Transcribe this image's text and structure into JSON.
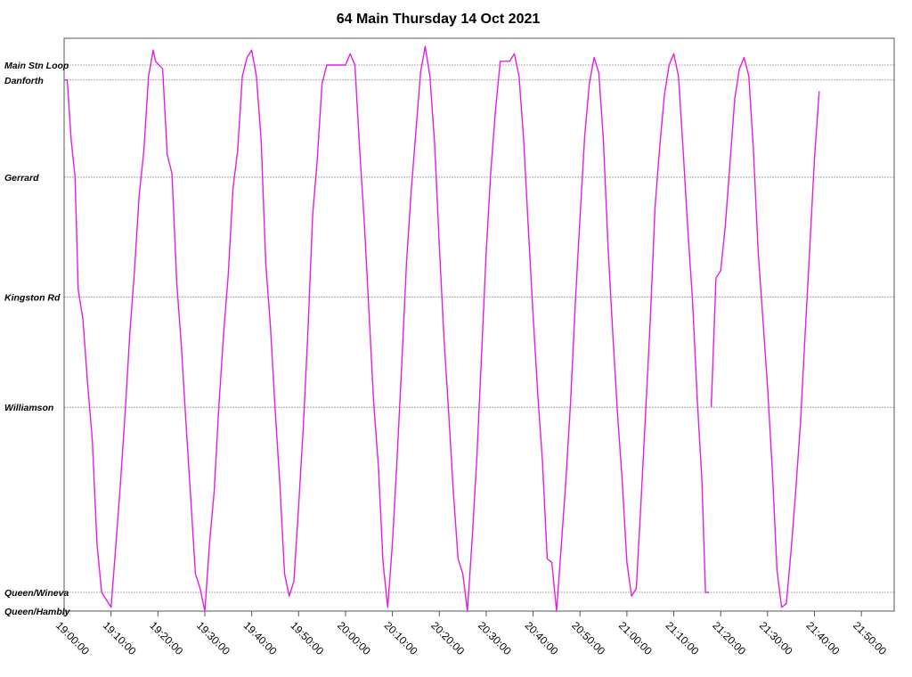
{
  "chart_data": {
    "type": "line",
    "title": "64 Main Thursday 14 Oct 2021",
    "xlabel": "",
    "ylabel": "",
    "x_axis": {
      "unit": "time",
      "min": "19:00:00",
      "max": "21:57:00",
      "ticks": [
        "19:00:00",
        "19:10:00",
        "19:20:00",
        "19:30:00",
        "19:40:00",
        "19:50:00",
        "20:00:00",
        "20:10:00",
        "20:20:00",
        "20:30:00",
        "20:40:00",
        "20:50:00",
        "21:00:00",
        "21:10:00",
        "21:20:00",
        "21:30:00",
        "21:40:00",
        "21:50:00"
      ]
    },
    "y_axis": {
      "type": "stops",
      "range": [
        "Queen/Hambly",
        "Main Stn Loop"
      ],
      "stops": [
        {
          "name": "Main Stn Loop",
          "pos": 14.6
        },
        {
          "name": "Danforth",
          "pos": 14.2
        },
        {
          "name": "Gerrard",
          "pos": 11.6
        },
        {
          "name": "Kingston Rd",
          "pos": 8.4
        },
        {
          "name": "Williamson",
          "pos": 5.45
        },
        {
          "name": "Queen/Wineva",
          "pos": 0.5
        },
        {
          "name": "Queen/Hambly",
          "pos": 0.0
        }
      ]
    },
    "grid": true,
    "legend": "none",
    "colors": {
      "series": "#e020e0"
    },
    "series": [
      {
        "points": [
          [
            "19:00:00",
            14.2
          ],
          [
            "19:00:40",
            14.2
          ],
          [
            "19:01:30",
            12.6
          ],
          [
            "19:02:20",
            11.6
          ],
          [
            "19:03:00",
            8.6
          ],
          [
            "19:04:00",
            7.8
          ],
          [
            "19:05:00",
            6.1
          ],
          [
            "19:06:00",
            4.6
          ],
          [
            "19:07:00",
            1.8
          ],
          [
            "19:08:00",
            0.5
          ],
          [
            "19:09:00",
            0.3
          ],
          [
            "19:10:00",
            0.1
          ],
          [
            "19:11:00",
            1.7
          ],
          [
            "19:12:00",
            3.4
          ],
          [
            "19:13:00",
            5.3
          ],
          [
            "19:14:00",
            7.4
          ],
          [
            "19:15:00",
            9.1
          ],
          [
            "19:16:00",
            11.1
          ],
          [
            "19:17:00",
            12.3
          ],
          [
            "19:18:00",
            14.3
          ],
          [
            "19:19:00",
            15.0
          ],
          [
            "19:19:30",
            14.7
          ],
          [
            "19:21:00",
            14.5
          ],
          [
            "19:22:00",
            12.2
          ],
          [
            "19:23:00",
            11.7
          ],
          [
            "19:24:00",
            8.8
          ],
          [
            "19:25:00",
            7.1
          ],
          [
            "19:26:00",
            5.0
          ],
          [
            "19:27:00",
            3.0
          ],
          [
            "19:28:00",
            1.0
          ],
          [
            "19:29:00",
            0.6
          ],
          [
            "19:30:00",
            0.0
          ],
          [
            "19:31:00",
            1.8
          ],
          [
            "19:32:00",
            3.2
          ],
          [
            "19:33:00",
            5.5
          ],
          [
            "19:34:00",
            7.4
          ],
          [
            "19:35:00",
            9.0
          ],
          [
            "19:36:00",
            11.3
          ],
          [
            "19:37:00",
            12.3
          ],
          [
            "19:38:00",
            14.3
          ],
          [
            "19:39:00",
            14.8
          ],
          [
            "19:40:00",
            15.0
          ],
          [
            "19:41:00",
            14.3
          ],
          [
            "19:42:00",
            12.6
          ],
          [
            "19:43:00",
            9.3
          ],
          [
            "19:44:00",
            7.6
          ],
          [
            "19:45:00",
            5.4
          ],
          [
            "19:46:00",
            3.4
          ],
          [
            "19:47:00",
            1.0
          ],
          [
            "19:48:00",
            0.4
          ],
          [
            "19:49:00",
            0.8
          ],
          [
            "19:50:00",
            2.8
          ],
          [
            "19:51:00",
            4.9
          ],
          [
            "19:52:00",
            7.5
          ],
          [
            "19:53:00",
            10.6
          ],
          [
            "19:54:00",
            12.1
          ],
          [
            "19:55:00",
            14.1
          ],
          [
            "19:56:00",
            14.6
          ],
          [
            "20:00:00",
            14.6
          ],
          [
            "20:01:00",
            14.9
          ],
          [
            "20:02:00",
            14.6
          ],
          [
            "20:03:00",
            12.4
          ],
          [
            "20:04:00",
            10.4
          ],
          [
            "20:05:00",
            8.0
          ],
          [
            "20:06:00",
            5.6
          ],
          [
            "20:07:00",
            3.9
          ],
          [
            "20:08:00",
            1.3
          ],
          [
            "20:09:00",
            0.1
          ],
          [
            "20:10:00",
            1.8
          ],
          [
            "20:11:00",
            4.1
          ],
          [
            "20:12:00",
            6.6
          ],
          [
            "20:13:00",
            9.3
          ],
          [
            "20:14:00",
            11.2
          ],
          [
            "20:15:00",
            12.8
          ],
          [
            "20:16:00",
            14.4
          ],
          [
            "20:17:00",
            15.1
          ],
          [
            "20:18:00",
            14.3
          ],
          [
            "20:19:00",
            12.5
          ],
          [
            "20:20:00",
            9.8
          ],
          [
            "20:21:00",
            7.3
          ],
          [
            "20:22:00",
            5.3
          ],
          [
            "20:23:00",
            3.2
          ],
          [
            "20:24:00",
            1.4
          ],
          [
            "20:25:00",
            1.0
          ],
          [
            "20:26:00",
            0.0
          ],
          [
            "20:27:00",
            1.9
          ],
          [
            "20:28:00",
            4.1
          ],
          [
            "20:29:00",
            6.8
          ],
          [
            "20:30:00",
            9.6
          ],
          [
            "20:31:00",
            11.8
          ],
          [
            "20:32:00",
            13.4
          ],
          [
            "20:33:00",
            14.7
          ],
          [
            "20:35:00",
            14.7
          ],
          [
            "20:36:00",
            14.9
          ],
          [
            "20:37:00",
            14.3
          ],
          [
            "20:38:00",
            12.6
          ],
          [
            "20:39:00",
            10.2
          ],
          [
            "20:40:00",
            7.9
          ],
          [
            "20:41:00",
            5.8
          ],
          [
            "20:42:00",
            4.0
          ],
          [
            "20:43:00",
            1.4
          ],
          [
            "20:44:00",
            1.3
          ],
          [
            "20:45:00",
            0.0
          ],
          [
            "20:46:00",
            1.7
          ],
          [
            "20:47:00",
            3.5
          ],
          [
            "20:48:00",
            5.6
          ],
          [
            "20:49:00",
            8.2
          ],
          [
            "20:50:00",
            10.5
          ],
          [
            "20:51:00",
            12.7
          ],
          [
            "20:52:00",
            14.1
          ],
          [
            "20:53:00",
            14.8
          ],
          [
            "20:54:00",
            14.4
          ],
          [
            "20:55:00",
            12.6
          ],
          [
            "20:56:00",
            9.7
          ],
          [
            "20:57:00",
            7.4
          ],
          [
            "20:58:00",
            5.3
          ],
          [
            "20:59:00",
            3.5
          ],
          [
            "21:00:00",
            1.3
          ],
          [
            "21:01:00",
            0.4
          ],
          [
            "21:02:00",
            0.6
          ],
          [
            "21:03:00",
            2.9
          ],
          [
            "21:04:00",
            5.3
          ],
          [
            "21:05:00",
            7.8
          ],
          [
            "21:06:00",
            10.8
          ],
          [
            "21:07:00",
            12.4
          ],
          [
            "21:08:00",
            13.8
          ],
          [
            "21:09:00",
            14.6
          ],
          [
            "21:10:00",
            14.9
          ],
          [
            "21:11:00",
            14.3
          ],
          [
            "21:12:00",
            12.3
          ],
          [
            "21:13:00",
            10.2
          ],
          [
            "21:14:00",
            8.3
          ],
          [
            "21:15:00",
            5.7
          ],
          [
            "21:16:00",
            3.5
          ],
          [
            "21:16:45",
            0.5
          ],
          [
            "21:17:30",
            0.5
          ]
        ]
      },
      {
        "points": [
          [
            "21:18:00",
            5.45
          ],
          [
            "21:19:00",
            8.9
          ],
          [
            "21:20:00",
            9.1
          ],
          [
            "21:21:00",
            10.3
          ],
          [
            "21:22:00",
            12.0
          ],
          [
            "21:23:00",
            13.7
          ],
          [
            "21:24:00",
            14.5
          ],
          [
            "21:25:00",
            14.8
          ],
          [
            "21:26:00",
            14.3
          ],
          [
            "21:27:00",
            12.3
          ],
          [
            "21:28:00",
            9.6
          ],
          [
            "21:29:00",
            7.8
          ],
          [
            "21:30:00",
            6.0
          ],
          [
            "21:31:00",
            3.8
          ],
          [
            "21:32:00",
            1.1
          ],
          [
            "21:33:00",
            0.1
          ],
          [
            "21:34:00",
            0.2
          ],
          [
            "21:35:00",
            1.6
          ],
          [
            "21:36:00",
            3.2
          ],
          [
            "21:37:00",
            5.0
          ],
          [
            "21:38:00",
            7.4
          ],
          [
            "21:39:00",
            9.7
          ],
          [
            "21:40:00",
            12.1
          ],
          [
            "21:41:00",
            13.9
          ]
        ]
      }
    ]
  }
}
